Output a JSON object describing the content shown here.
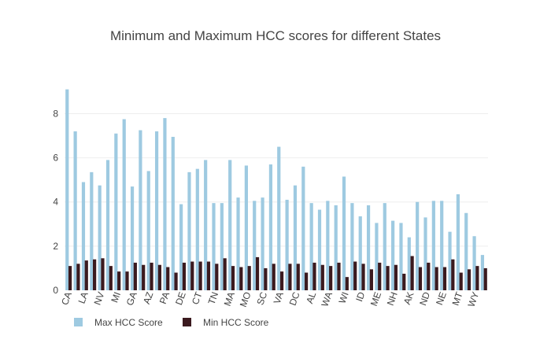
{
  "chart_data": {
    "type": "bar",
    "title": "Minimum and Maximum HCC scores for different States",
    "xlabel": "",
    "ylabel": "",
    "ylim": [
      0,
      9.3
    ],
    "yticks": [
      0,
      2,
      4,
      6,
      8
    ],
    "grid": "horizontal",
    "legend": "bottom-left",
    "categories": [
      "CA",
      "",
      "LA",
      "",
      "NV",
      "",
      "MI",
      "",
      "GA",
      "",
      "AZ",
      "",
      "PA",
      "",
      "DE",
      "",
      "CT",
      "",
      "TN",
      "",
      "MA",
      "",
      "MO",
      "",
      "SC",
      "",
      "VA",
      "",
      "DC",
      "",
      "AL",
      "",
      "WA",
      "",
      "WI",
      "",
      "ID",
      "",
      "ME",
      "",
      "NH",
      "",
      "AK",
      "",
      "ND",
      "",
      "NE",
      "",
      "MT",
      "",
      "WY",
      ""
    ],
    "series": [
      {
        "name": "Max HCC Score",
        "color": "#9ecae1",
        "values": [
          9.1,
          7.2,
          4.9,
          5.35,
          4.75,
          5.9,
          7.1,
          7.75,
          4.7,
          7.25,
          5.4,
          7.2,
          7.8,
          6.95,
          3.9,
          5.35,
          5.5,
          5.9,
          3.95,
          3.95,
          5.9,
          4.2,
          5.65,
          4.05,
          4.2,
          5.7,
          6.5,
          4.1,
          4.75,
          5.6,
          3.95,
          3.65,
          4.05,
          3.85,
          5.15,
          3.95,
          3.35,
          3.85,
          3.05,
          3.95,
          3.15,
          3.05,
          2.4,
          4.0,
          3.3,
          4.05,
          4.05,
          2.65,
          4.35,
          3.5,
          2.45,
          1.6
        ]
      },
      {
        "name": "Min HCC Score",
        "color": "#3b1a1f",
        "values": [
          1.1,
          1.2,
          1.35,
          1.4,
          1.45,
          1.1,
          0.85,
          0.85,
          1.25,
          1.15,
          1.25,
          1.15,
          1.05,
          0.8,
          1.25,
          1.3,
          1.3,
          1.3,
          1.2,
          1.45,
          1.1,
          1.05,
          1.1,
          1.5,
          1.0,
          1.2,
          0.85,
          1.2,
          1.2,
          0.8,
          1.25,
          1.15,
          1.1,
          1.25,
          0.6,
          1.3,
          1.2,
          0.95,
          1.25,
          1.1,
          1.15,
          0.75,
          1.55,
          1.05,
          1.25,
          1.05,
          1.05,
          1.4,
          0.8,
          0.95,
          1.1,
          1.0
        ]
      }
    ]
  }
}
